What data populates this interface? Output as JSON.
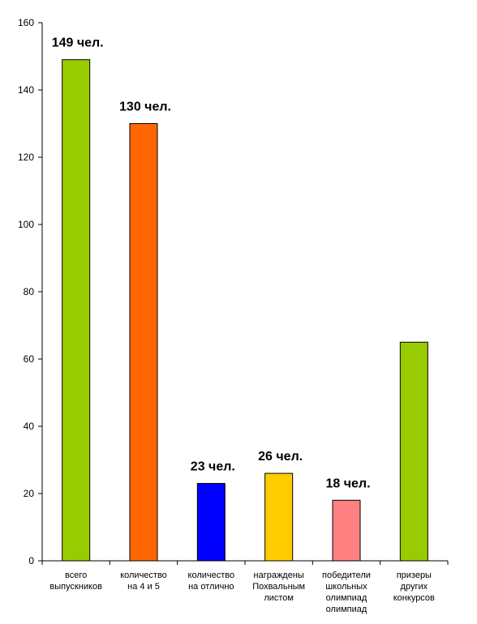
{
  "chart_data": {
    "type": "bar",
    "title": "",
    "xlabel": "",
    "ylabel": "",
    "ylim": [
      0,
      160
    ],
    "yticks": [
      0,
      20,
      40,
      60,
      80,
      100,
      120,
      140,
      160
    ],
    "ytick_labels": [
      "0",
      "20",
      "40",
      "60",
      "80",
      "100",
      "120",
      "140",
      "160"
    ],
    "grid": false,
    "legend": "none",
    "categories": [
      [
        "всего",
        "выпускников"
      ],
      [
        "количество",
        "на 4 и 5"
      ],
      [
        "количество",
        "на отлично"
      ],
      [
        "награждены",
        "Похвальным",
        "листом"
      ],
      [
        "победители",
        "школьных",
        "олимпиад",
        "олимпиад"
      ],
      [
        "приzеры",
        "других",
        "конкурсов"
      ]
    ],
    "values": [
      149,
      130,
      23,
      26,
      18,
      65
    ],
    "colors": [
      "#99CC00",
      "#FF6600",
      "#0000FF",
      "#FFCC00",
      "#FF8080",
      "#99CC00"
    ],
    "data_labels": [
      "149 чел.",
      "130 чел.",
      "23 чел.",
      "26 чел.",
      "18 чел.",
      ""
    ]
  }
}
